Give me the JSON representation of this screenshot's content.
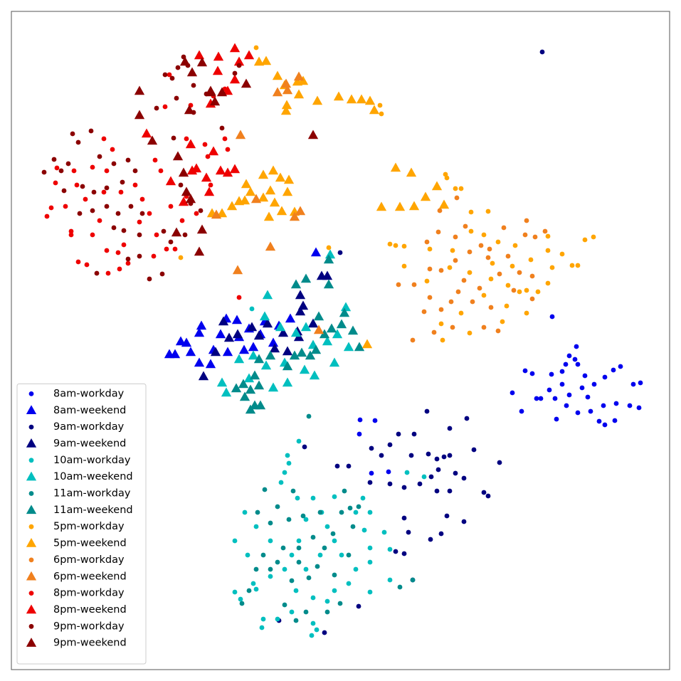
{
  "chart_data": {
    "type": "scatter",
    "xlim": [
      16,
      941
    ],
    "ylim": [
      941,
      16
    ],
    "legend": "lower left",
    "series": [
      {
        "name": "8am-workday",
        "color": "#0000ee",
        "marker": "circle",
        "x": [
          738,
          748,
          775,
          790,
          800,
          810,
          812,
          790,
          772,
          760,
          780,
          800,
          818,
          835,
          850,
          862,
          872,
          890,
          900,
          885,
          898,
          866,
          848,
          830,
          812,
          782,
          842,
          850,
          864,
          720,
          733,
          754,
          822,
          776,
          826,
          796,
          808,
          795,
          506,
          505,
          527,
          546,
          522
        ],
        "values": [
          521,
          525,
          526,
          522,
          500,
          487,
          512,
          540,
          548,
          560,
          560,
          555,
          545,
          540,
          530,
          520,
          515,
          540,
          538,
          570,
          573,
          567,
          570,
          578,
          580,
          589,
          592,
          597,
          591,
          552,
          578,
          560,
          528,
          445,
          558,
          570,
          505,
          512,
          590,
          610,
          591,
          663,
          665
        ]
      },
      {
        "name": "8am-weekend",
        "color": "#0000ee",
        "marker": "triangle",
        "x": [
          238,
          246,
          254,
          268,
          283,
          280,
          300,
          310,
          320,
          333,
          336,
          350,
          356,
          372,
          392,
          408,
          384,
          296,
          262,
          444,
          280,
          343,
          318,
          366
        ],
        "values": [
          498,
          498,
          480,
          495,
          458,
          510,
          492,
          470,
          495,
          450,
          474,
          462,
          488,
          452,
          458,
          448,
          482,
          512,
          482,
          355,
          468,
          492,
          448,
          470
        ]
      },
      {
        "name": "9am-workday",
        "color": "#000080",
        "marker": "circle",
        "x": [
          762,
          478,
          600,
          656,
          632,
          582,
          560,
          522,
          548,
          536,
          578,
          602,
          614,
          624,
          632,
          666,
          702,
          490,
          474,
          520,
          548,
          568,
          590,
          606,
          616,
          640,
          652,
          632,
          614,
          680,
          686,
          568,
          628,
          652,
          620,
          605,
          574,
          556,
          568,
          580,
          504,
          456,
          392,
          428
        ],
        "values": [
          73,
          355,
          578,
          588,
          602,
          610,
          610,
          630,
          625,
          640,
          640,
          638,
          645,
          642,
          640,
          632,
          650,
          655,
          655,
          678,
          680,
          685,
          680,
          670,
          660,
          665,
          672,
          690,
          690,
          692,
          697,
          728,
          725,
          733,
          750,
          758,
          748,
          775,
          778,
          815,
          852,
          889,
          872,
          628
        ]
      },
      {
        "name": "9am-weekend",
        "color": "#000080",
        "marker": "triangle",
        "x": [
          452,
          460,
          422,
          426,
          422,
          440,
          376,
          364,
          386,
          404,
          420,
          314,
          334,
          322,
          286,
          303,
          418,
          398,
          354
        ],
        "values": [
          388,
          388,
          415,
          430,
          438,
          455,
          455,
          472,
          490,
          494,
          474,
          452,
          470,
          475,
          529,
          495,
          466,
          468,
          460
        ]
      },
      {
        "name": "10am-workday",
        "color": "#00bfbf",
        "marker": "circle",
        "x": [
          354,
          404,
          420,
          406,
          400,
          395,
          344,
          330,
          348,
          330,
          338,
          360,
          370,
          368,
          390,
          410,
          440,
          438,
          445,
          520,
          548,
          548,
          540,
          512,
          520,
          500,
          470,
          452,
          430,
          420,
          400,
          380,
          416,
          440,
          460,
          470,
          490,
          500,
          520,
          470,
          450,
          430,
          410,
          380,
          360,
          460,
          480,
          510,
          596,
          572,
          356,
          520,
          440,
          418
        ],
        "values": [
          434,
          640,
          620,
          651,
          664,
          678,
          720,
          760,
          780,
          832,
          842,
          828,
          870,
          882,
          870,
          860,
          876,
          893,
          885,
          832,
          772,
          815,
          748,
          745,
          770,
          720,
          698,
          720,
          730,
          760,
          800,
          810,
          830,
          840,
          845,
          830,
          820,
          800,
          790,
          760,
          780,
          800,
          780,
          760,
          740,
          740,
          780,
          700,
          670,
          664,
          820,
          720,
          700,
          700
        ]
      },
      {
        "name": "10am-weekend",
        "color": "#00bfbf",
        "marker": "triangle",
        "x": [
          376,
          464,
          372,
          394,
          416,
          430,
          440,
          460,
          474,
          400,
          374,
          356,
          336,
          312,
          318,
          428,
          442,
          470,
          384,
          404,
          350,
          486,
          490
        ],
        "values": [
          415,
          358,
          445,
          460,
          468,
          460,
          485,
          480,
          470,
          510,
          514,
          500,
          505,
          538,
          552,
          520,
          528,
          510,
          545,
          538,
          532,
          432,
          488
        ]
      },
      {
        "name": "11am-workday",
        "color": "#008b8b",
        "marker": "circle",
        "x": [
          434,
          372,
          412,
          390,
          380,
          406,
          426,
          450,
          480,
          496,
          468,
          440,
          420,
          398,
          370,
          360,
          390,
          420,
          446,
          470,
          490,
          456,
          434,
          410,
          380,
          350,
          460,
          478,
          430,
          400,
          492,
          504,
          484,
          362,
          340,
          562,
          580,
          416
        ],
        "values": [
          585,
          688,
          690,
          712,
          735,
          730,
          725,
          720,
          720,
          740,
          750,
          755,
          770,
          770,
          780,
          800,
          790,
          790,
          796,
          808,
          780,
          770,
          812,
          816,
          800,
          830,
          860,
          848,
          860,
          850,
          714,
          712,
          690,
          720,
          848,
          825,
          815,
          872
        ]
      },
      {
        "name": "11am-weekend",
        "color": "#008b8b",
        "marker": "triangle",
        "x": [
          462,
          462,
          430,
          416,
          448,
          484,
          480,
          496,
          505,
          466,
          456,
          436,
          424,
          414,
          380,
          364,
          404,
          358,
          342,
          332,
          352,
          358,
          352,
          366,
          344,
          364,
          444
        ],
        "values": [
          365,
          400,
          392,
          400,
          445,
          440,
          456,
          465,
          488,
          462,
          470,
          500,
          496,
          500,
          500,
          505,
          515,
          528,
          540,
          546,
          548,
          570,
          576,
          570,
          558,
          542,
          492
        ]
      },
      {
        "name": "5pm-workday",
        "color": "#ffa500",
        "marker": "circle",
        "x": [
          360,
          534,
          536,
          626,
          628,
          640,
          648,
          662,
          686,
          548,
          556,
          568,
          604,
          636,
          662,
          680,
          700,
          724,
          746,
          770,
          770,
          790,
          822,
          834,
          804,
          812,
          776,
          600,
          632,
          660,
          690,
          714,
          730,
          756,
          770,
          680,
          712,
          740,
          648,
          620,
          706,
          660,
          740,
          622,
          254,
          462,
          568,
          692,
          720
        ],
        "values": [
          67,
          148,
          160,
          245,
          250,
          265,
          265,
          298,
          297,
          343,
          345,
          346,
          350,
          352,
          325,
          330,
          340,
          345,
          365,
          332,
          352,
          357,
          337,
          333,
          373,
          373,
          376,
          395,
          376,
          383,
          392,
          401,
          410,
          410,
          398,
          415,
          430,
          440,
          440,
          455,
          452,
          468,
          408,
          478,
          362,
          348,
          374,
          370,
          374
        ]
      },
      {
        "name": "5pm-weekend",
        "color": "#ffa500",
        "marker": "triangle",
        "x": [
          364,
          374,
          390,
          418,
          426,
          400,
          403,
          402,
          420,
          446,
          476,
          494,
          508,
          520,
          526,
          556,
          578,
          598,
          614,
          536,
          562,
          582,
          624,
          370,
          384,
          394,
          406,
          380,
          370,
          346,
          352,
          336,
          326,
          344,
          298,
          312,
          386,
          396,
          378,
          414,
          516,
          404
        ],
        "values": [
          87,
          86,
          107,
          115,
          114,
          120,
          148,
          156,
          133,
          142,
          136,
          140,
          140,
          142,
          155,
          236,
          243,
          277,
          262,
          291,
          291,
          290,
          288,
          246,
          240,
          250,
          253,
          268,
          278,
          259,
          270,
          283,
          290,
          282,
          300,
          300,
          285,
          297,
          305,
          298,
          484,
          270
        ]
      },
      {
        "name": "6pm-workday",
        "color": "#f0801e",
        "marker": "circle",
        "x": [
          642,
          618,
          600,
          616,
          640,
          654,
          676,
          708,
          740,
          752,
          766,
          738,
          714,
          686,
          660,
          640,
          620,
          604,
          582,
          560,
          604,
          634,
          664,
          690,
          620,
          596,
          580,
          610,
          636,
          680,
          700,
          748,
          722,
          652,
          702,
          730,
          748,
          674,
          644,
          688
        ],
        "values": [
          278,
          296,
          340,
          326,
          333,
          318,
          345,
          320,
          310,
          333,
          325,
          330,
          360,
          362,
          354,
          366,
          380,
          378,
          400,
          400,
          418,
          424,
          424,
          432,
          435,
          438,
          478,
          467,
          460,
          460,
          465,
          420,
          408,
          394,
          385,
          383,
          388,
          405,
          410,
          350
        ]
      },
      {
        "name": "6pm-weekend",
        "color": "#f0801e",
        "marker": "triangle",
        "x": [
          420,
          402,
          390,
          404,
          338,
          422,
          414,
          380,
          334,
          448,
          304,
          360
        ],
        "values": [
          108,
          118,
          130,
          127,
          190,
          297,
          305,
          347,
          380,
          464,
          302,
          280
        ]
      },
      {
        "name": "8pm-workday",
        "color": "#ee0000",
        "marker": "circle",
        "x": [
          66,
          72,
          78,
          80,
          92,
          104,
          108,
          100,
          100,
          110,
          122,
          130,
          140,
          146,
          150,
          150,
          152,
          166,
          168,
          174,
          180,
          196,
          200,
          210,
          216,
          220,
          226,
          234,
          240,
          256,
          262,
          276,
          262,
          218,
          158,
          130,
          170,
          190,
          120,
          146,
          336,
          246,
          316,
          300,
          232,
          268,
          238,
          296,
          320,
          292,
          316,
          288
        ],
        "values": [
          304,
          292,
          257,
          236,
          290,
          240,
          260,
          330,
          325,
          368,
          372,
          330,
          310,
          270,
          240,
          352,
          384,
          355,
          378,
          344,
          370,
          312,
          280,
          300,
          360,
          330,
          240,
          350,
          290,
          310,
          276,
          300,
          195,
          225,
          210,
          235,
          270,
          260,
          280,
          195,
          418,
          350,
          125,
          135,
          150,
          148,
          105,
          260,
          210,
          220,
          195,
          203
        ]
      },
      {
        "name": "8pm-weekend",
        "color": "#ee0000",
        "marker": "triangle",
        "x": [
          280,
          307,
          330,
          306,
          336,
          330,
          320,
          350,
          296,
          268,
          300,
          290,
          310,
          320,
          330,
          206,
          276,
          240,
          294,
          258,
          270
        ],
        "values": [
          78,
          80,
          68,
          100,
          87,
          112,
          128,
          78,
          146,
          203,
          213,
          250,
          240,
          243,
          238,
          188,
          237,
          255,
          270,
          284,
          240
        ]
      },
      {
        "name": "9pm-workday",
        "color": "#8b0000",
        "marker": "circle",
        "x": [
          62,
          76,
          86,
          96,
          102,
          110,
          128,
          140,
          160,
          180,
          190,
          172,
          150,
          132,
          116,
          90,
          112,
          130,
          150,
          166,
          184,
          200,
          160,
          174,
          196,
          230,
          240,
          228,
          210,
          196,
          136,
          180,
          196,
          232,
          242,
          250,
          258,
          264,
          272,
          248,
          272,
          290,
          312,
          330,
          336,
          220,
          254,
          282,
          260,
          244,
          268
        ],
        "values": [
          242,
          224,
          240,
          230,
          188,
          200,
          184,
          220,
          230,
          225,
          240,
          256,
          264,
          270,
          262,
          268,
          300,
          296,
          290,
          300,
          290,
          300,
          320,
          324,
          330,
          325,
          340,
          385,
          392,
          360,
          384,
          364,
          128,
          105,
          110,
          95,
          80,
          92,
          120,
          138,
          158,
          132,
          180,
          103,
          92,
          152,
          260,
          296,
          330,
          194,
          286
        ]
      },
      {
        "name": "9pm-weekend",
        "color": "#8b0000",
        "marker": "triangle",
        "x": [
          196,
          260,
          270,
          284,
          296,
          302,
          266,
          312,
          346,
          440,
          214,
          250,
          258,
          262,
          268,
          284,
          248,
          280,
          296,
          196
        ],
        "values": [
          128,
          87,
          102,
          88,
          128,
          143,
          155,
          130,
          118,
          190,
          198,
          220,
          243,
          270,
          280,
          323,
          327,
          354,
          130,
          162
        ]
      }
    ]
  }
}
